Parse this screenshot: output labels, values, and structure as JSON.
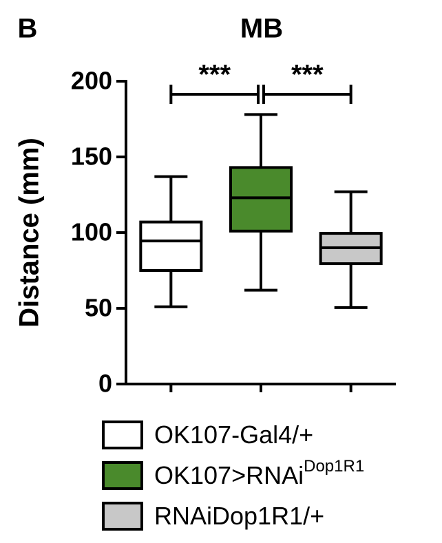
{
  "panel_label": "B",
  "chart_data": {
    "type": "box",
    "title": "MB",
    "ylabel": "Distance (mm)",
    "ylim": [
      0,
      200
    ],
    "yticks": [
      0,
      50,
      100,
      150,
      200
    ],
    "series": [
      {
        "name": "OK107-Gal4/+",
        "color": "#ffffff",
        "min": 51,
        "q1": 75,
        "median": 94.5,
        "q3": 107,
        "max": 137
      },
      {
        "name": "OK107>RNAi",
        "name_superscript": "Dop1R1",
        "color": "#4a8a2c",
        "min": 62,
        "q1": 101,
        "median": 123,
        "q3": 143,
        "max": 178
      },
      {
        "name": "RNAiDop1R1/+",
        "color": "#c8c8c8",
        "min": 50.5,
        "q1": 79.5,
        "median": 90,
        "q3": 99.5,
        "max": 127
      }
    ],
    "annotations": [
      {
        "text": "***"
      },
      {
        "text": "***"
      }
    ]
  }
}
